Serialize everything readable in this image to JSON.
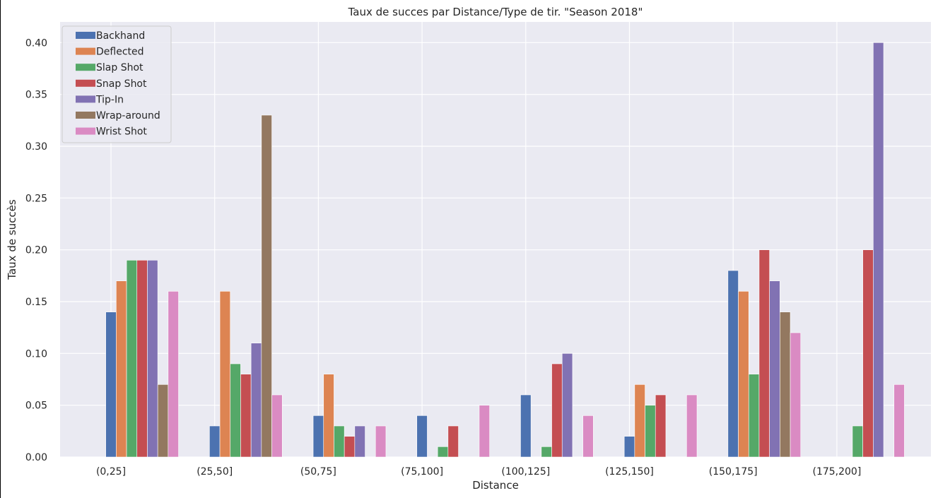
{
  "chart_data": {
    "type": "bar",
    "title": "Taux de succes par Distance/Type de tir. \"Season 2018\"",
    "xlabel": "Distance",
    "ylabel": "Taux de succès",
    "categories": [
      "(0,25]",
      "(25,50]",
      "(50,75]",
      "(75,100]",
      "(100,125]",
      "(125,150]",
      "(150,175]",
      "(175,200]"
    ],
    "ylim": [
      0,
      0.42
    ],
    "yticks": [
      "0.00",
      "0.05",
      "0.10",
      "0.15",
      "0.20",
      "0.25",
      "0.30",
      "0.35",
      "0.40"
    ],
    "grid": true,
    "legend_position": "top-left",
    "series": [
      {
        "name": "Backhand",
        "color": "#4c72b0",
        "values": [
          0.14,
          0.03,
          0.04,
          0.04,
          0.06,
          0.02,
          0.18,
          0
        ]
      },
      {
        "name": "Deflected",
        "color": "#dd8452",
        "values": [
          0.17,
          0.16,
          0.08,
          0,
          0,
          0.07,
          0.16,
          0
        ]
      },
      {
        "name": "Slap Shot",
        "color": "#55a868",
        "values": [
          0.19,
          0.09,
          0.03,
          0.01,
          0.01,
          0.05,
          0.08,
          0.03
        ]
      },
      {
        "name": "Snap Shot",
        "color": "#c44e52",
        "values": [
          0.19,
          0.08,
          0.02,
          0.03,
          0.09,
          0.06,
          0.2,
          0.2
        ]
      },
      {
        "name": "Tip-In",
        "color": "#8172b3",
        "values": [
          0.19,
          0.11,
          0.03,
          0,
          0.1,
          0,
          0.17,
          0.4
        ]
      },
      {
        "name": "Wrap-around",
        "color": "#937860",
        "values": [
          0.07,
          0.33,
          0,
          0,
          0,
          0,
          0.14,
          0
        ]
      },
      {
        "name": "Wrist Shot",
        "color": "#da8bc3",
        "values": [
          0.16,
          0.06,
          0.03,
          0.05,
          0.04,
          0.06,
          0.12,
          0.07
        ]
      }
    ]
  }
}
